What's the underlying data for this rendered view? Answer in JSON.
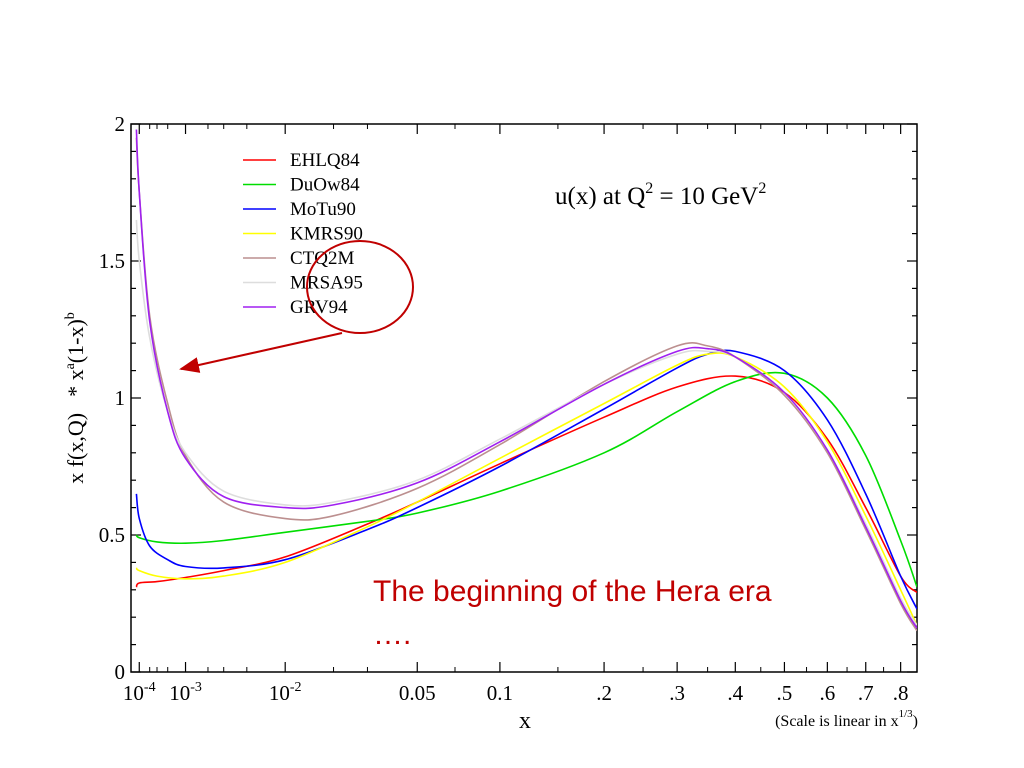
{
  "chart_data": {
    "type": "line",
    "title": "u(x) at Q",
    "title_sup1": "2",
    "title_mid": " = 10 GeV",
    "title_sup2": "2",
    "xlabel": "x",
    "xlabel_note": "(Scale is linear in x",
    "xlabel_note_sup": "1/3",
    "xlabel_note_end": ")",
    "ylabel_main": "x f(x,Q)",
    "ylabel_star": "* x",
    "ylabel_a": "a",
    "ylabel_mid": "(1-x)",
    "ylabel_b": "b",
    "x_scale": "cube-root",
    "xlim": [
      5e-05,
      0.85
    ],
    "ylim": [
      0,
      2
    ],
    "y_ticks": [
      {
        "v": 0,
        "label": "0"
      },
      {
        "v": 0.5,
        "label": "0.5"
      },
      {
        "v": 1,
        "label": "1"
      },
      {
        "v": 1.5,
        "label": "1.5"
      },
      {
        "v": 2,
        "label": "2"
      }
    ],
    "x_ticks": [
      {
        "v": 0.0001,
        "base": "10",
        "exp": "-4"
      },
      {
        "v": 0.001,
        "base": "10",
        "exp": "-3"
      },
      {
        "v": 0.01,
        "base": "10",
        "exp": "-2"
      },
      {
        "v": 0.05,
        "label": "0.05"
      },
      {
        "v": 0.1,
        "label": "0.1"
      },
      {
        "v": 0.2,
        "label": ".2"
      },
      {
        "v": 0.3,
        "label": ".3"
      },
      {
        "v": 0.4,
        "label": ".4"
      },
      {
        "v": 0.5,
        "label": ".5"
      },
      {
        "v": 0.6,
        "label": ".6"
      },
      {
        "v": 0.7,
        "label": ".7"
      },
      {
        "v": 0.8,
        "label": ".8"
      }
    ],
    "legend_position": "top-left",
    "series": [
      {
        "name": "EHLQ84",
        "color": "#ff0000",
        "x": [
          8e-05,
          0.0001,
          0.0003,
          0.001,
          0.003,
          0.01,
          0.03,
          0.05,
          0.1,
          0.2,
          0.3,
          0.4,
          0.5,
          0.6,
          0.7,
          0.8,
          0.85
        ],
        "y": [
          0.31,
          0.325,
          0.33,
          0.345,
          0.37,
          0.42,
          0.54,
          0.62,
          0.76,
          0.93,
          1.04,
          1.08,
          1.02,
          0.85,
          0.6,
          0.35,
          0.29
        ]
      },
      {
        "name": "DuOw84",
        "color": "#00dd00",
        "x": [
          8e-05,
          0.0001,
          0.0003,
          0.001,
          0.003,
          0.01,
          0.03,
          0.05,
          0.1,
          0.2,
          0.3,
          0.4,
          0.5,
          0.6,
          0.7,
          0.8,
          0.85
        ],
        "y": [
          0.5,
          0.49,
          0.475,
          0.47,
          0.48,
          0.51,
          0.55,
          0.58,
          0.66,
          0.8,
          0.95,
          1.06,
          1.09,
          1.0,
          0.79,
          0.48,
          0.31
        ]
      },
      {
        "name": "MoTu90",
        "color": "#0000ff",
        "x": [
          8e-05,
          0.0001,
          0.0002,
          0.0005,
          0.001,
          0.003,
          0.01,
          0.03,
          0.05,
          0.1,
          0.2,
          0.3,
          0.35,
          0.4,
          0.5,
          0.6,
          0.7,
          0.8,
          0.85
        ],
        "y": [
          0.65,
          0.56,
          0.46,
          0.41,
          0.385,
          0.38,
          0.41,
          0.52,
          0.6,
          0.75,
          0.96,
          1.11,
          1.16,
          1.17,
          1.1,
          0.92,
          0.65,
          0.35,
          0.23
        ]
      },
      {
        "name": "KMRS90",
        "color": "#ffff00",
        "x": [
          8e-05,
          0.0001,
          0.0003,
          0.001,
          0.003,
          0.01,
          0.03,
          0.05,
          0.1,
          0.2,
          0.3,
          0.35,
          0.4,
          0.5,
          0.6,
          0.7,
          0.8,
          0.85
        ],
        "y": [
          0.38,
          0.37,
          0.35,
          0.34,
          0.35,
          0.4,
          0.53,
          0.62,
          0.78,
          0.98,
          1.12,
          1.16,
          1.15,
          1.04,
          0.84,
          0.57,
          0.3,
          0.17
        ]
      },
      {
        "name": "CTQ2M",
        "color": "#bc8f8f",
        "x": [
          8e-05,
          0.0001,
          0.0002,
          0.0005,
          0.001,
          0.003,
          0.01,
          0.02,
          0.05,
          0.1,
          0.2,
          0.3,
          0.35,
          0.4,
          0.5,
          0.6,
          0.7,
          0.8,
          0.85
        ],
        "y": [
          1.95,
          1.75,
          1.3,
          0.98,
          0.79,
          0.62,
          0.56,
          0.57,
          0.67,
          0.83,
          1.06,
          1.19,
          1.19,
          1.15,
          1.01,
          0.8,
          0.52,
          0.25,
          0.15
        ]
      },
      {
        "name": "MRSA95",
        "color": "#dddddd",
        "x": [
          8e-05,
          0.0001,
          0.0002,
          0.0005,
          0.001,
          0.003,
          0.01,
          0.02,
          0.05,
          0.1,
          0.2,
          0.3,
          0.35,
          0.4,
          0.5,
          0.6,
          0.7,
          0.8,
          0.85
        ],
        "y": [
          1.65,
          1.5,
          1.22,
          0.95,
          0.8,
          0.66,
          0.61,
          0.62,
          0.7,
          0.85,
          1.05,
          1.16,
          1.17,
          1.15,
          1.02,
          0.81,
          0.54,
          0.27,
          0.17
        ]
      },
      {
        "name": "GRV94",
        "color": "#a020f0",
        "x": [
          8e-05,
          0.0001,
          0.0002,
          0.0005,
          0.001,
          0.003,
          0.01,
          0.02,
          0.05,
          0.1,
          0.2,
          0.3,
          0.35,
          0.4,
          0.5,
          0.6,
          0.7,
          0.8,
          0.85
        ],
        "y": [
          1.98,
          1.75,
          1.28,
          0.95,
          0.78,
          0.64,
          0.6,
          0.61,
          0.69,
          0.84,
          1.05,
          1.17,
          1.18,
          1.15,
          1.02,
          0.81,
          0.53,
          0.26,
          0.16
        ]
      }
    ]
  },
  "annotation": {
    "text_line1": "The beginning of the Hera era",
    "text_line2": "….",
    "color": "#c00000"
  }
}
